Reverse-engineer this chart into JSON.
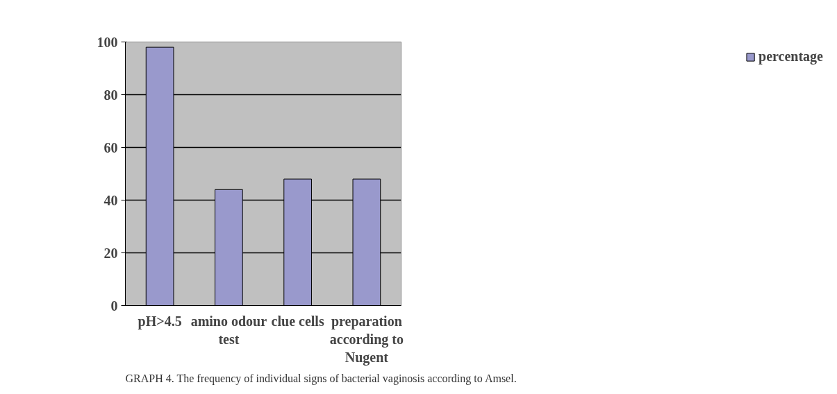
{
  "chart_data": {
    "type": "bar",
    "categories": [
      "pH>4.5",
      "amino odour test",
      "clue cells",
      "preparation according to Nugent"
    ],
    "series": [
      {
        "name": "percentage",
        "color": "#9999cc",
        "values": [
          98,
          44,
          48,
          48
        ]
      }
    ],
    "ylim": [
      0,
      100
    ],
    "yticks": [
      0,
      20,
      40,
      60,
      80,
      100
    ],
    "grid": "y",
    "legend": "right",
    "annotations": [
      "GRAPH 4. The frequency of individual signs of bacterial vaginosis according to Amsel."
    ]
  }
}
